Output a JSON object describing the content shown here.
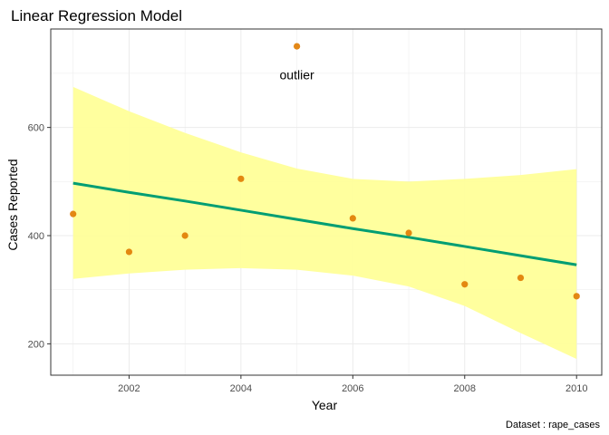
{
  "chart_data": {
    "type": "scatter",
    "title": "Linear Regression Model",
    "xlabel": "Year",
    "ylabel": "Cases Reported",
    "caption": "Dataset : rape_cases",
    "xlim": [
      2000.6,
      2010.45
    ],
    "ylim": [
      142,
      782
    ],
    "x_ticks": [
      2002,
      2004,
      2006,
      2008,
      2010
    ],
    "y_ticks": [
      200,
      400,
      600
    ],
    "grid": true,
    "points": {
      "color": "#E07B00",
      "x": [
        2001,
        2002,
        2003,
        2004,
        2005,
        2006,
        2007,
        2008,
        2009,
        2010
      ],
      "y": [
        440,
        370,
        400,
        505,
        750,
        432,
        405,
        310,
        322,
        288
      ]
    },
    "fit": {
      "color": "#009E73",
      "band_color": "#FFFF99",
      "x": [
        2001,
        2002,
        2003,
        2004,
        2005,
        2006,
        2007,
        2008,
        2009,
        2010
      ],
      "y": [
        497,
        480,
        464,
        447,
        430,
        413,
        397,
        380,
        363,
        346
      ],
      "lower": [
        320,
        330,
        337,
        340,
        337,
        326,
        306,
        270,
        220,
        172
      ],
      "upper": [
        675,
        630,
        590,
        554,
        524,
        505,
        500,
        505,
        512,
        523
      ]
    },
    "annotation": {
      "text": "outlier",
      "x": 2005,
      "y": 697
    }
  }
}
